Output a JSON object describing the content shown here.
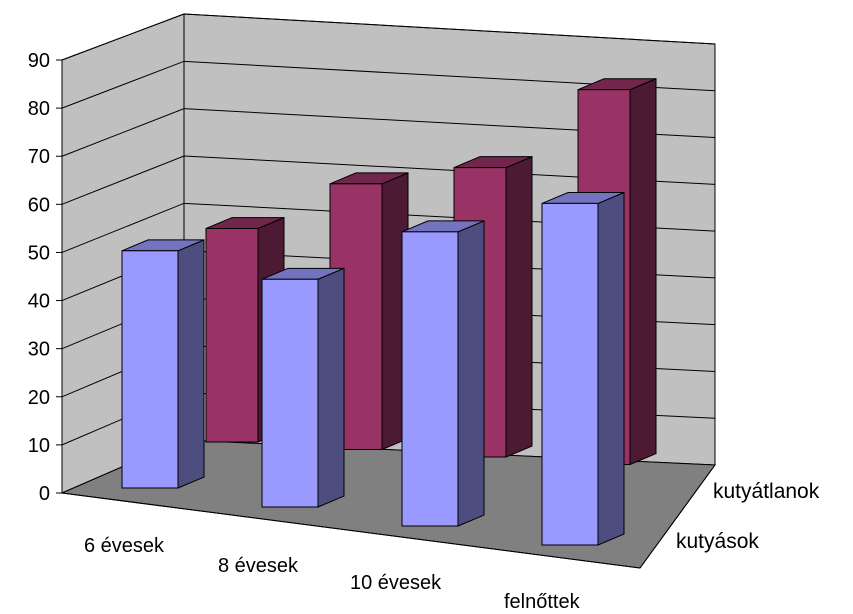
{
  "chart_data": {
    "type": "bar",
    "categories": [
      "6 évesek",
      "8 évesek",
      "10 évesek",
      "felnőttek"
    ],
    "series": [
      {
        "name": "kutyások",
        "values": [
          50,
          48,
          62,
          72
        ],
        "color": "#9999FF"
      },
      {
        "name": "kutyátlanok",
        "values": [
          45,
          56,
          61,
          79
        ],
        "color": "#993366"
      }
    ],
    "y_ticks": [
      "0",
      "10",
      "20",
      "30",
      "40",
      "50",
      "60",
      "70",
      "80",
      "90"
    ],
    "ylim": [
      0,
      90
    ],
    "gridlines": true,
    "wall_color": "#C0C0C0",
    "floor_color": "#808080",
    "title": "",
    "xlabel": "",
    "ylabel": ""
  }
}
